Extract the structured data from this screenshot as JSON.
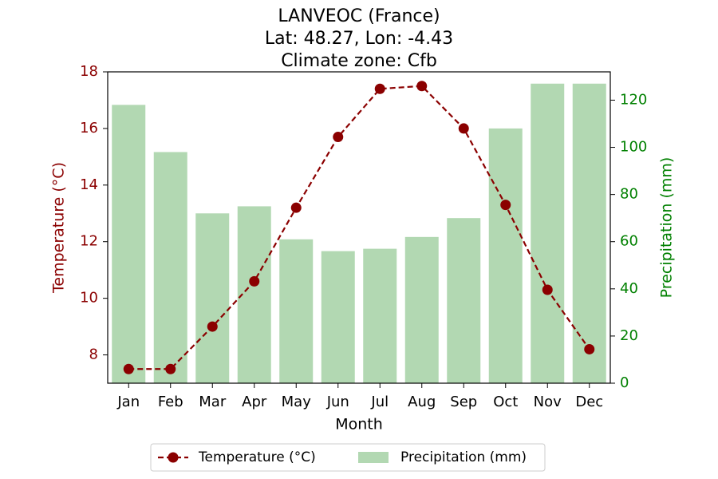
{
  "chart_data": {
    "type": "bar+line",
    "title_lines": [
      "LANVEOC (France)",
      "Lat: 48.27, Lon: -4.43",
      "Climate zone: Cfb"
    ],
    "xlabel": "Month",
    "categories": [
      "Jan",
      "Feb",
      "Mar",
      "Apr",
      "May",
      "Jun",
      "Jul",
      "Aug",
      "Sep",
      "Oct",
      "Nov",
      "Dec"
    ],
    "temperature": {
      "name": "Temperature (°C)",
      "axis_label": "Temperature (°C)",
      "values": [
        7.5,
        7.5,
        9.0,
        10.6,
        13.2,
        15.7,
        17.4,
        17.5,
        16.0,
        13.3,
        10.3,
        8.2
      ],
      "ylim": [
        7.0,
        18.0
      ],
      "ticks": [
        8,
        10,
        12,
        14,
        16,
        18
      ],
      "color": "#8b0000",
      "style": "dashed-line-circle-markers"
    },
    "precipitation": {
      "name": "Precipitation (mm)",
      "axis_label": "Precipitation (mm)",
      "values": [
        118,
        98,
        72,
        75,
        61,
        56,
        57,
        62,
        70,
        108,
        127,
        127
      ],
      "ylim": [
        0,
        132
      ],
      "ticks": [
        0,
        20,
        40,
        60,
        80,
        100,
        120
      ],
      "color": "#008000",
      "bar_color": "#b2d8b2"
    },
    "legend": {
      "placement": "bottom-center"
    }
  }
}
